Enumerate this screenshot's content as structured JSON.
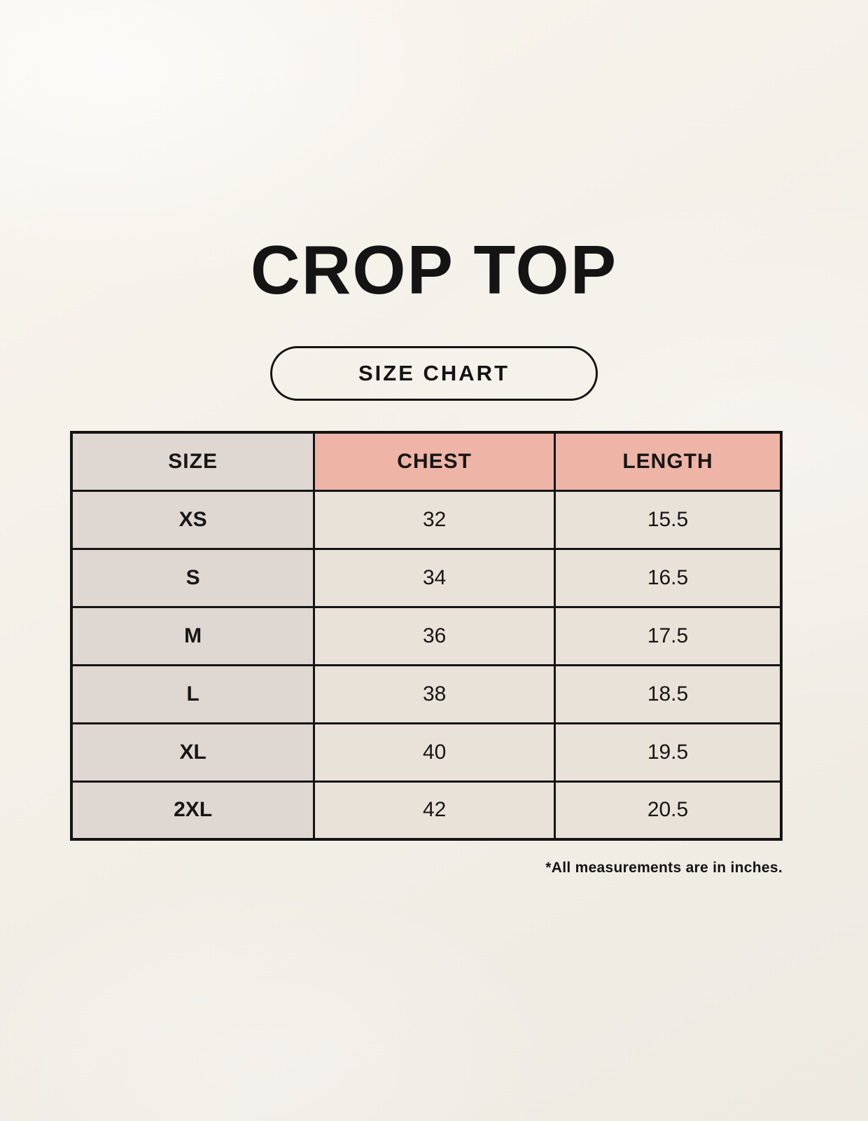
{
  "page": {
    "title": "CROP TOP",
    "badge_label": "SIZE CHART",
    "footnote": "*All measurements are in inches."
  },
  "colors": {
    "background": "#f3f0e8",
    "size_column_bg": "#ded7d2",
    "header_accent_bg": "#eeb5a6",
    "data_cell_bg": "#e9e2d8",
    "border": "#141414",
    "text": "#141414"
  },
  "chart_data": {
    "type": "table",
    "title": "CROP TOP size chart",
    "units": "inches",
    "columns": [
      "SIZE",
      "CHEST",
      "LENGTH"
    ],
    "rows": [
      {
        "size": "XS",
        "chest": "32",
        "length": "15.5"
      },
      {
        "size": "S",
        "chest": "34",
        "length": "16.5"
      },
      {
        "size": "M",
        "chest": "36",
        "length": "17.5"
      },
      {
        "size": "L",
        "chest": "38",
        "length": "18.5"
      },
      {
        "size": "XL",
        "chest": "40",
        "length": "19.5"
      },
      {
        "size": "2XL",
        "chest": "42",
        "length": "20.5"
      }
    ]
  }
}
